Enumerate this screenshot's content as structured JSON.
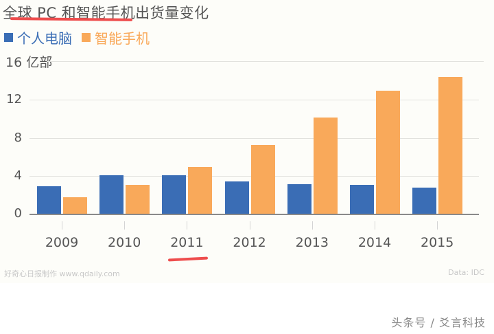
{
  "title": "全球 PC 和智能手机出货量变化",
  "legend": [
    {
      "label": "个人电脑",
      "color": "#3a6db5"
    },
    {
      "label": "智能手机",
      "color": "#f9a95a"
    }
  ],
  "unit_label": "16 亿部",
  "y_ticks": [
    "12",
    "8",
    "4",
    "0"
  ],
  "x_labels": [
    "2009",
    "2010",
    "2011",
    "2012",
    "2013",
    "2014",
    "2015"
  ],
  "credit": "好奇心日报制作 www.qdaily.com",
  "source": "Data: IDC",
  "watermark": "头条号 / 爻言科技",
  "colors": {
    "pc": "#3a6db5",
    "smartphone": "#f9a95a",
    "annotation": "#ee4d4d",
    "background": "#fdfdf9"
  },
  "chart_data": {
    "type": "bar",
    "title": "全球 PC 和智能手机出货量变化",
    "xlabel": "",
    "ylabel": "亿部",
    "ylim": [
      0,
      16
    ],
    "yticks": [
      0,
      4,
      8,
      12,
      16
    ],
    "grid": true,
    "legend_position": "top-left",
    "categories": [
      "2009",
      "2010",
      "2011",
      "2012",
      "2013",
      "2014",
      "2015"
    ],
    "series": [
      {
        "name": "个人电脑",
        "color": "#3a6db5",
        "values": [
          2.9,
          4.0,
          4.0,
          3.4,
          3.1,
          3.0,
          2.7
        ]
      },
      {
        "name": "智能手机",
        "color": "#f9a95a",
        "values": [
          1.7,
          3.0,
          4.9,
          7.2,
          10.1,
          12.9,
          14.3
        ]
      }
    ],
    "annotations": [
      "red underline under title '全球 PC 和智能手机'",
      "red underline under 2011"
    ],
    "source": "Data: IDC"
  }
}
